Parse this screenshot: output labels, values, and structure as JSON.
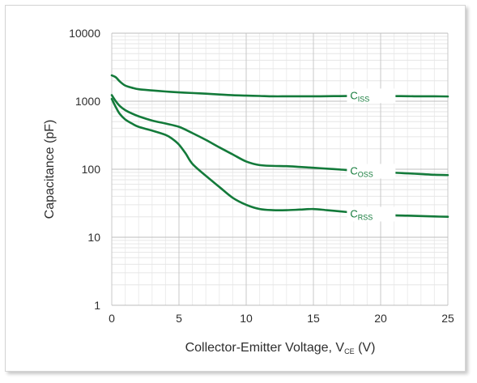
{
  "chart_data": {
    "type": "line",
    "title": "",
    "xlabel": "Collector-Emitter Voltage, V",
    "xlabel_sub": "CE",
    "xlabel_suffix": " (V)",
    "ylabel": "Capacitance (pF)",
    "xlim": [
      0,
      25
    ],
    "ylim": [
      1,
      10000
    ],
    "yscale": "log",
    "grid": true,
    "line_color": "#137a3a",
    "x_ticks": [
      "0",
      "5",
      "10",
      "15",
      "20",
      "25"
    ],
    "y_ticks": [
      "1",
      "10",
      "100",
      "1000",
      "10000"
    ],
    "series": [
      {
        "name": "C",
        "name_sub": "ISS",
        "x": [
          0,
          0.3,
          0.6,
          1,
          1.5,
          2,
          3,
          4,
          5,
          6,
          7,
          8,
          9,
          10,
          11,
          12,
          13,
          14,
          15,
          16,
          17,
          18,
          19,
          20,
          21,
          22,
          23,
          24,
          25
        ],
        "y": [
          2400,
          2250,
          1950,
          1700,
          1580,
          1500,
          1440,
          1390,
          1350,
          1320,
          1290,
          1255,
          1225,
          1210,
          1195,
          1180,
          1180,
          1180,
          1180,
          1185,
          1190,
          1195,
          1200,
          1195,
          1190,
          1185,
          1180,
          1180,
          1175
        ]
      },
      {
        "name": "C",
        "name_sub": "OSS",
        "x": [
          0,
          0.3,
          0.6,
          1,
          1.5,
          2,
          3,
          4,
          5,
          6,
          7,
          8,
          9,
          10,
          11,
          12,
          13,
          14,
          15,
          16,
          17,
          18,
          19,
          20,
          21,
          22,
          23,
          24,
          25
        ],
        "y": [
          1230,
          1000,
          850,
          740,
          660,
          600,
          520,
          470,
          420,
          340,
          270,
          210,
          165,
          130,
          115,
          112,
          111,
          108,
          105,
          102,
          99,
          96,
          94,
          92,
          89,
          87,
          85,
          83,
          82
        ]
      },
      {
        "name": "C",
        "name_sub": "RSS",
        "x": [
          0,
          0.3,
          0.6,
          1,
          1.5,
          2,
          3,
          4,
          4.5,
          5,
          5.5,
          6,
          7,
          8,
          9,
          10,
          11,
          12,
          13,
          14,
          15,
          16,
          17,
          18,
          19,
          20,
          21,
          22,
          23,
          24,
          25
        ],
        "y": [
          1080,
          820,
          650,
          540,
          470,
          420,
          370,
          320,
          280,
          230,
          170,
          120,
          80,
          55,
          38,
          30,
          26,
          25,
          25,
          25.5,
          26,
          25,
          24,
          23,
          22,
          21.5,
          21,
          20.8,
          20.5,
          20.2,
          20
        ]
      }
    ]
  }
}
